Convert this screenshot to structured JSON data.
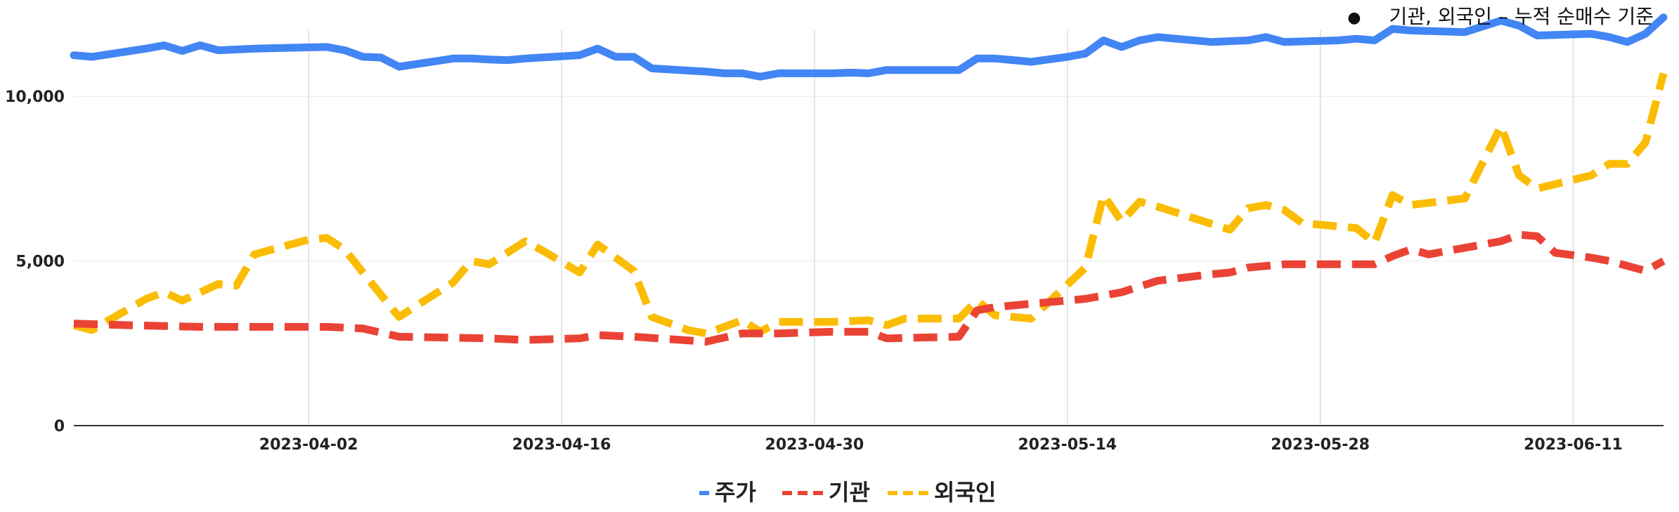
{
  "note": {
    "text": "기관, 외국인 – 누적 순매수 기준"
  },
  "colors": {
    "주가": "#4285f4",
    "기관": "#ea4335",
    "외국인": "#fbbc04",
    "grid": "#dcdcdc",
    "baseline": "#333333"
  },
  "chart_data": {
    "type": "line",
    "xlabel": "",
    "ylabel": "",
    "ylim": [
      0,
      12500
    ],
    "y_ticks": [
      0,
      5000,
      10000
    ],
    "y_tick_labels": [
      "0",
      "5,000",
      "10,000"
    ],
    "x_range": [
      "2023-03-20",
      "2023-06-16"
    ],
    "x_ticks": [
      "2023-04-02",
      "2023-04-16",
      "2023-04-30",
      "2023-05-14",
      "2023-05-28",
      "2023-06-11"
    ],
    "legend_position": "bottom",
    "grid": "vertical",
    "series": [
      {
        "name": "주가",
        "style": "solid",
        "points": [
          [
            "2023-03-20",
            11250
          ],
          [
            "2023-03-21",
            11200
          ],
          [
            "2023-03-24",
            11450
          ],
          [
            "2023-03-25",
            11550
          ],
          [
            "2023-03-26",
            11380
          ],
          [
            "2023-03-27",
            11550
          ],
          [
            "2023-03-28",
            11400
          ],
          [
            "2023-03-30",
            11450
          ],
          [
            "2023-04-03",
            11500
          ],
          [
            "2023-04-04",
            11400
          ],
          [
            "2023-04-05",
            11200
          ],
          [
            "2023-04-06",
            11180
          ],
          [
            "2023-04-07",
            10900
          ],
          [
            "2023-04-10",
            11150
          ],
          [
            "2023-04-11",
            11150
          ],
          [
            "2023-04-12",
            11120
          ],
          [
            "2023-04-13",
            11100
          ],
          [
            "2023-04-14",
            11150
          ],
          [
            "2023-04-17",
            11250
          ],
          [
            "2023-04-18",
            11450
          ],
          [
            "2023-04-19",
            11200
          ],
          [
            "2023-04-20",
            11200
          ],
          [
            "2023-04-21",
            10850
          ],
          [
            "2023-04-24",
            10750
          ],
          [
            "2023-04-25",
            10700
          ],
          [
            "2023-04-26",
            10700
          ],
          [
            "2023-04-27",
            10600
          ],
          [
            "2023-04-28",
            10700
          ],
          [
            "2023-05-01",
            10700
          ],
          [
            "2023-05-02",
            10720
          ],
          [
            "2023-05-03",
            10700
          ],
          [
            "2023-05-04",
            10800
          ],
          [
            "2023-05-08",
            10800
          ],
          [
            "2023-05-09",
            11150
          ],
          [
            "2023-05-10",
            11150
          ],
          [
            "2023-05-11",
            11100
          ],
          [
            "2023-05-12",
            11050
          ],
          [
            "2023-05-14",
            11200
          ],
          [
            "2023-05-15",
            11300
          ],
          [
            "2023-05-16",
            11700
          ],
          [
            "2023-05-17",
            11500
          ],
          [
            "2023-05-18",
            11700
          ],
          [
            "2023-05-19",
            11800
          ],
          [
            "2023-05-22",
            11650
          ],
          [
            "2023-05-24",
            11700
          ],
          [
            "2023-05-25",
            11800
          ],
          [
            "2023-05-26",
            11650
          ],
          [
            "2023-05-29",
            11700
          ],
          [
            "2023-05-30",
            11750
          ],
          [
            "2023-05-31",
            11700
          ],
          [
            "2023-06-01",
            12050
          ],
          [
            "2023-06-02",
            12000
          ],
          [
            "2023-06-05",
            11950
          ],
          [
            "2023-06-07",
            12300
          ],
          [
            "2023-06-08",
            12150
          ],
          [
            "2023-06-09",
            11850
          ],
          [
            "2023-06-12",
            11900
          ],
          [
            "2023-06-13",
            11800
          ],
          [
            "2023-06-14",
            11650
          ],
          [
            "2023-06-15",
            11900
          ],
          [
            "2023-06-16",
            12400
          ]
        ]
      },
      {
        "name": "기관",
        "style": "dashed",
        "points": [
          [
            "2023-03-20",
            3100
          ],
          [
            "2023-03-23",
            3050
          ],
          [
            "2023-03-27",
            3000
          ],
          [
            "2023-03-31",
            3000
          ],
          [
            "2023-04-03",
            3000
          ],
          [
            "2023-04-05",
            2950
          ],
          [
            "2023-04-07",
            2700
          ],
          [
            "2023-04-12",
            2650
          ],
          [
            "2023-04-14",
            2600
          ],
          [
            "2023-04-17",
            2650
          ],
          [
            "2023-04-18",
            2750
          ],
          [
            "2023-04-20",
            2700
          ],
          [
            "2023-04-24",
            2550
          ],
          [
            "2023-04-26",
            2800
          ],
          [
            "2023-04-28",
            2800
          ],
          [
            "2023-05-01",
            2850
          ],
          [
            "2023-05-03",
            2850
          ],
          [
            "2023-05-04",
            2650
          ],
          [
            "2023-05-08",
            2700
          ],
          [
            "2023-05-09",
            3500
          ],
          [
            "2023-05-10",
            3600
          ],
          [
            "2023-05-12",
            3700
          ],
          [
            "2023-05-15",
            3850
          ],
          [
            "2023-05-17",
            4050
          ],
          [
            "2023-05-19",
            4400
          ],
          [
            "2023-05-22",
            4600
          ],
          [
            "2023-05-23",
            4650
          ],
          [
            "2023-05-24",
            4800
          ],
          [
            "2023-05-25",
            4850
          ],
          [
            "2023-05-26",
            4900
          ],
          [
            "2023-05-29",
            4900
          ],
          [
            "2023-05-31",
            4900
          ],
          [
            "2023-06-01",
            5150
          ],
          [
            "2023-06-02",
            5350
          ],
          [
            "2023-06-03",
            5200
          ],
          [
            "2023-06-05",
            5400
          ],
          [
            "2023-06-07",
            5600
          ],
          [
            "2023-06-08",
            5800
          ],
          [
            "2023-06-09",
            5750
          ],
          [
            "2023-06-10",
            5250
          ],
          [
            "2023-06-12",
            5100
          ],
          [
            "2023-06-13",
            5000
          ],
          [
            "2023-06-14",
            4850
          ],
          [
            "2023-06-15",
            4700
          ],
          [
            "2023-06-16",
            5000
          ]
        ]
      },
      {
        "name": "외국인",
        "style": "dashed",
        "points": [
          [
            "2023-03-20",
            3050
          ],
          [
            "2023-03-21",
            2900
          ],
          [
            "2023-03-24",
            3850
          ],
          [
            "2023-03-25",
            4050
          ],
          [
            "2023-03-26",
            3800
          ],
          [
            "2023-03-28",
            4300
          ],
          [
            "2023-03-29",
            4250
          ],
          [
            "2023-03-30",
            5200
          ],
          [
            "2023-04-02",
            5650
          ],
          [
            "2023-04-03",
            5700
          ],
          [
            "2023-04-04",
            5350
          ],
          [
            "2023-04-05",
            4650
          ],
          [
            "2023-04-07",
            3300
          ],
          [
            "2023-04-10",
            4350
          ],
          [
            "2023-04-11",
            5000
          ],
          [
            "2023-04-12",
            4900
          ],
          [
            "2023-04-14",
            5600
          ],
          [
            "2023-04-15",
            5300
          ],
          [
            "2023-04-17",
            4650
          ],
          [
            "2023-04-18",
            5500
          ],
          [
            "2023-04-20",
            4700
          ],
          [
            "2023-04-21",
            3300
          ],
          [
            "2023-04-23",
            2900
          ],
          [
            "2023-04-24",
            2800
          ],
          [
            "2023-04-26",
            3200
          ],
          [
            "2023-04-27",
            2850
          ],
          [
            "2023-04-28",
            3150
          ],
          [
            "2023-05-01",
            3150
          ],
          [
            "2023-05-03",
            3200
          ],
          [
            "2023-05-04",
            3050
          ],
          [
            "2023-05-05",
            3250
          ],
          [
            "2023-05-08",
            3250
          ],
          [
            "2023-05-09",
            3800
          ],
          [
            "2023-05-10",
            3350
          ],
          [
            "2023-05-12",
            3250
          ],
          [
            "2023-05-15",
            4800
          ],
          [
            "2023-05-16",
            7000
          ],
          [
            "2023-05-17",
            6200
          ],
          [
            "2023-05-18",
            6800
          ],
          [
            "2023-05-19",
            6650
          ],
          [
            "2023-05-23",
            5950
          ],
          [
            "2023-05-24",
            6600
          ],
          [
            "2023-05-25",
            6700
          ],
          [
            "2023-05-26",
            6550
          ],
          [
            "2023-05-27",
            6150
          ],
          [
            "2023-05-30",
            6000
          ],
          [
            "2023-05-31",
            5550
          ],
          [
            "2023-06-01",
            7000
          ],
          [
            "2023-06-02",
            6700
          ],
          [
            "2023-06-05",
            6900
          ],
          [
            "2023-06-06",
            8000
          ],
          [
            "2023-06-07",
            9100
          ],
          [
            "2023-06-08",
            7600
          ],
          [
            "2023-06-09",
            7200
          ],
          [
            "2023-06-12",
            7600
          ],
          [
            "2023-06-13",
            7950
          ],
          [
            "2023-06-14",
            7950
          ],
          [
            "2023-06-15",
            8600
          ],
          [
            "2023-06-16",
            10700
          ]
        ]
      }
    ]
  }
}
